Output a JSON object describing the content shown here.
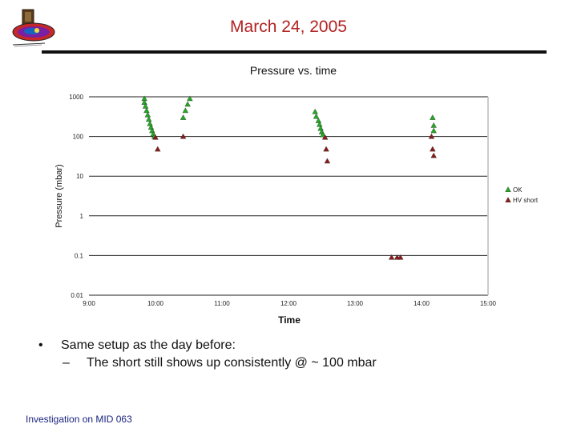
{
  "slide": {
    "title": "March 24, 2005",
    "footer": "Investigation on MID 063",
    "bullets": [
      {
        "text": "Same setup as the day before:",
        "subitems": [
          "The short still shows up consistently @ ~ 100 mbar"
        ]
      }
    ],
    "bullet_marker": "•",
    "sub_marker": "–"
  },
  "colors": {
    "title": "#b22222",
    "ok_marker": "#22aa22",
    "short_marker": "#8b1a1a",
    "footer": "#1a237e"
  },
  "chart_data": {
    "type": "scatter",
    "title": "Pressure vs. time",
    "xlabel": "Time",
    "ylabel": "Pressure (mbar)",
    "x_ticks": [
      "9:00",
      "10:00",
      "11:00",
      "12:00",
      "13:00",
      "14:00",
      "15:00"
    ],
    "y_ticks": [
      "1000",
      "100",
      "10",
      "1",
      "0.1",
      "0.01"
    ],
    "xlim": [
      "9:00",
      "15:00"
    ],
    "ylim": [
      0.01,
      1000
    ],
    "yscale": "log",
    "grid": "horizontal",
    "legend_position": "right",
    "series": [
      {
        "name": "OK",
        "marker": "triangle",
        "points": [
          [
            "9:50",
            900
          ],
          [
            "9:50",
            720
          ],
          [
            "9:51",
            580
          ],
          [
            "9:52",
            450
          ],
          [
            "9:53",
            350
          ],
          [
            "9:54",
            270
          ],
          [
            "9:55",
            210
          ],
          [
            "9:56",
            170
          ],
          [
            "9:57",
            140
          ],
          [
            "9:58",
            115
          ],
          [
            "9:59",
            100
          ],
          [
            "10:25",
            300
          ],
          [
            "10:27",
            450
          ],
          [
            "10:29",
            650
          ],
          [
            "10:31",
            900
          ],
          [
            "12:24",
            420
          ],
          [
            "12:25",
            320
          ],
          [
            "12:27",
            250
          ],
          [
            "12:28",
            200
          ],
          [
            "12:29",
            160
          ],
          [
            "12:30",
            130
          ],
          [
            "12:31",
            110
          ],
          [
            "14:10",
            300
          ],
          [
            "14:11",
            190
          ],
          [
            "14:11",
            140
          ]
        ]
      },
      {
        "name": "HV short",
        "marker": "triangle",
        "points": [
          [
            "10:00",
            95
          ],
          [
            "10:02",
            48
          ],
          [
            "10:25",
            100
          ],
          [
            "12:33",
            95
          ],
          [
            "12:34",
            48
          ],
          [
            "12:35",
            24
          ],
          [
            "13:33",
            0.09
          ],
          [
            "13:38",
            0.09
          ],
          [
            "13:41",
            0.09
          ],
          [
            "14:09",
            100
          ],
          [
            "14:10",
            48
          ],
          [
            "14:11",
            33
          ]
        ]
      }
    ]
  }
}
